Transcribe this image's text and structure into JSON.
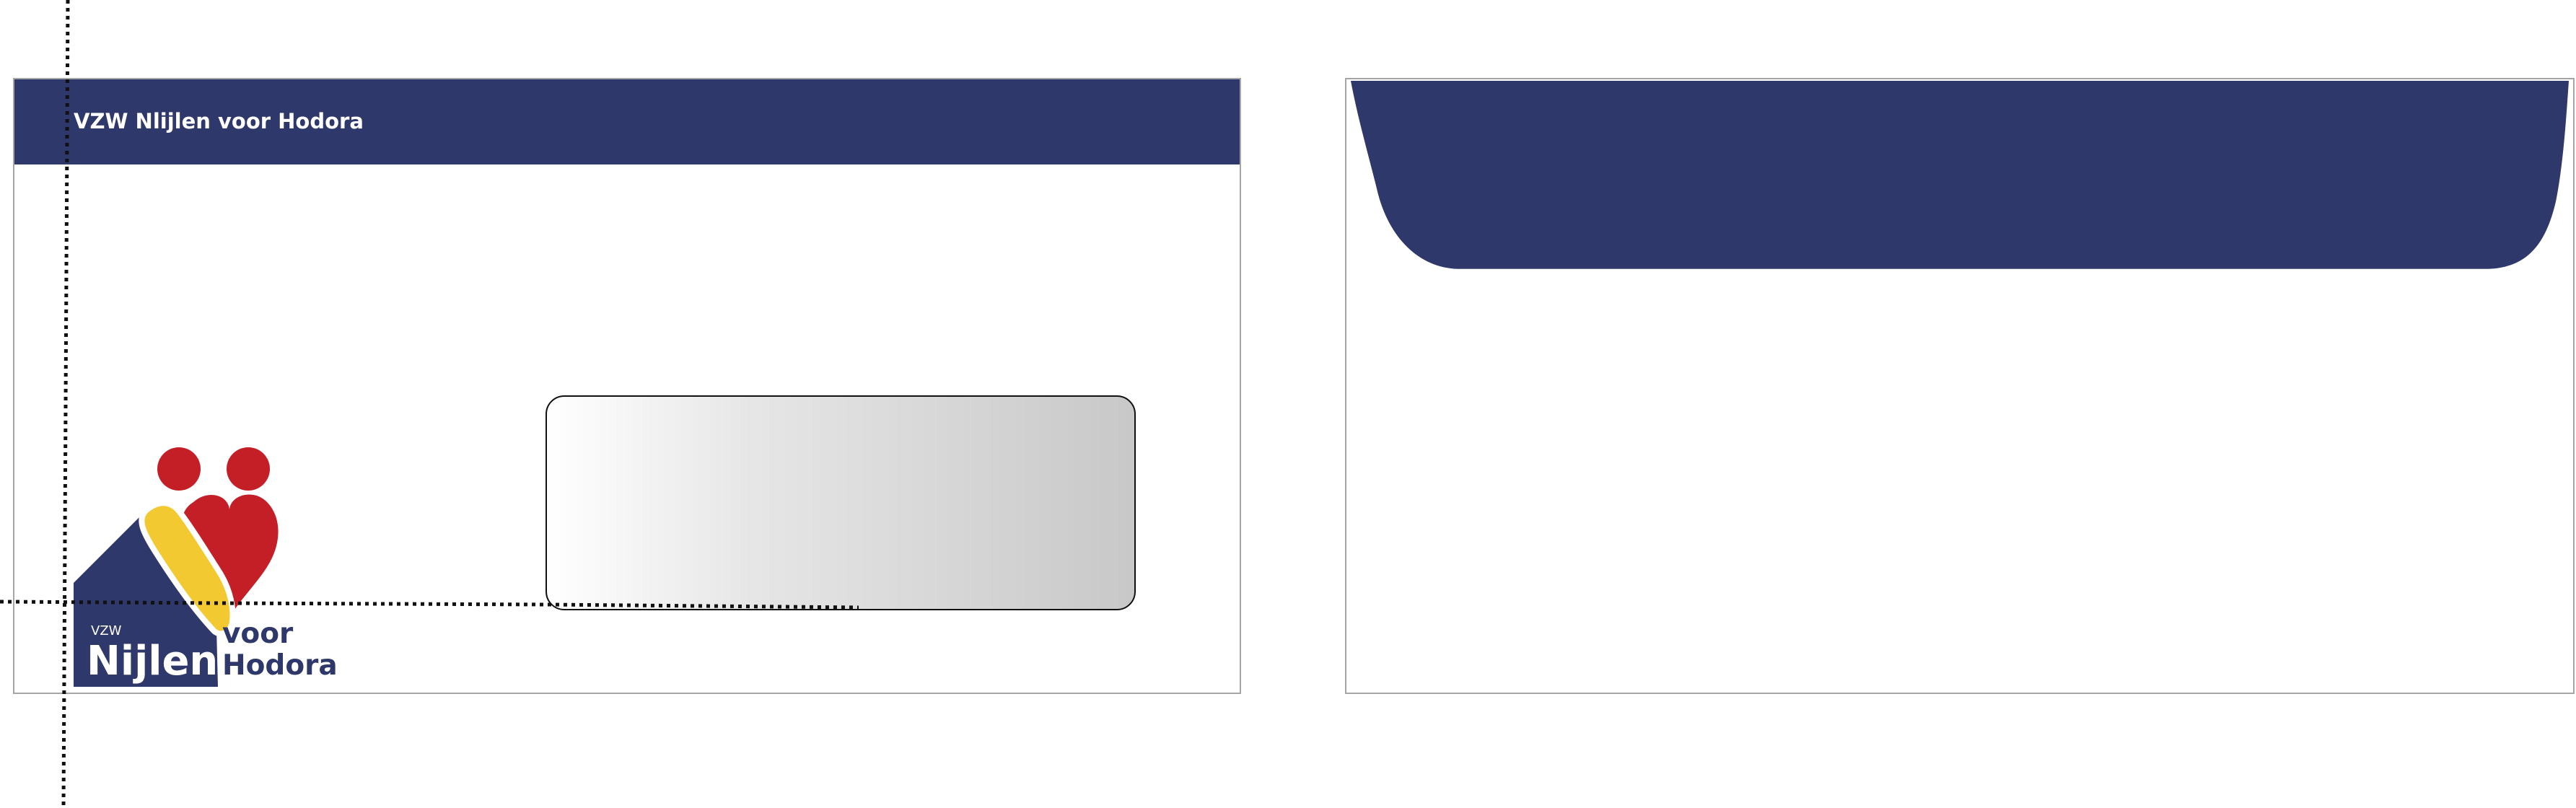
{
  "front": {
    "header_text": "VZW Nlijlen voor Hodora",
    "band_color": "#2e386a"
  },
  "logo": {
    "prefix": "VZW",
    "name_main": "Nijlen",
    "name_line1": "voor",
    "name_line2": "Hodora",
    "colors": {
      "navy": "#2e386a",
      "red": "#c41f26",
      "yellow": "#f2c931"
    },
    "icon_name": "vzw-nijlen-voor-hodora-logo-icon"
  },
  "back": {
    "flap_color": "#2e386a"
  }
}
